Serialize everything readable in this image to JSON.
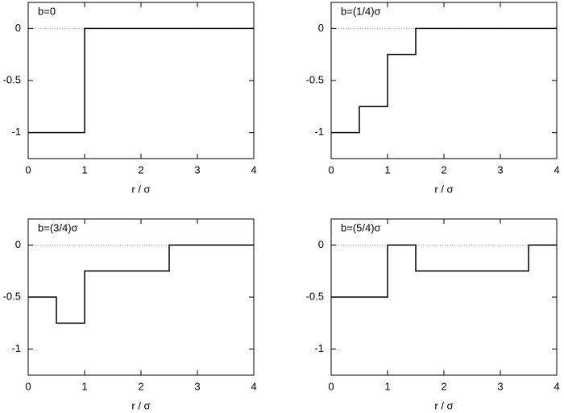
{
  "chart_data": [
    {
      "type": "line",
      "title": "b=0",
      "xlabel": "r / σ",
      "x": [
        0,
        1,
        1,
        4
      ],
      "values": [
        -1,
        -1,
        0,
        0
      ],
      "color": "#000000",
      "xlim": [
        0,
        4
      ],
      "ylim": [
        -1.25,
        0.25
      ],
      "xticks": [
        0,
        1,
        2,
        3,
        4
      ],
      "yticks": [
        -1,
        -0.5,
        0
      ],
      "hlines": [
        0
      ]
    },
    {
      "type": "line",
      "title": "b=(1/4)σ",
      "xlabel": "r / σ",
      "x": [
        0,
        0.5,
        0.5,
        1,
        1,
        1.5,
        1.5,
        4
      ],
      "values": [
        -1,
        -1,
        -0.75,
        -0.75,
        -0.25,
        -0.25,
        0,
        0
      ],
      "color": "#000000",
      "xlim": [
        0,
        4
      ],
      "ylim": [
        -1.25,
        0.25
      ],
      "xticks": [
        0,
        1,
        2,
        3,
        4
      ],
      "yticks": [
        -1,
        -0.5,
        0
      ],
      "hlines": [
        0
      ]
    },
    {
      "type": "line",
      "title": "b=(3/4)σ",
      "xlabel": "r / σ",
      "x": [
        0,
        0.5,
        0.5,
        1,
        1,
        2.5,
        2.5,
        4
      ],
      "values": [
        -0.5,
        -0.5,
        -0.75,
        -0.75,
        -0.25,
        -0.25,
        0,
        0
      ],
      "color": "#000000",
      "xlim": [
        0,
        4
      ],
      "ylim": [
        -1.25,
        0.25
      ],
      "xticks": [
        0,
        1,
        2,
        3,
        4
      ],
      "yticks": [
        -1,
        -0.5,
        0
      ],
      "hlines": [
        0
      ]
    },
    {
      "type": "line",
      "title": "b=(5/4)σ",
      "xlabel": "r / σ",
      "x": [
        0,
        1,
        1,
        1.5,
        1.5,
        3.5,
        3.5,
        4
      ],
      "values": [
        -0.5,
        -0.5,
        0,
        0,
        -0.25,
        -0.25,
        0,
        0
      ],
      "color": "#000000",
      "xlim": [
        0,
        4
      ],
      "ylim": [
        -1.25,
        0.25
      ],
      "xticks": [
        0,
        1,
        2,
        3,
        4
      ],
      "yticks": [
        -1,
        -0.5,
        0
      ],
      "hlines": [
        0
      ]
    }
  ]
}
